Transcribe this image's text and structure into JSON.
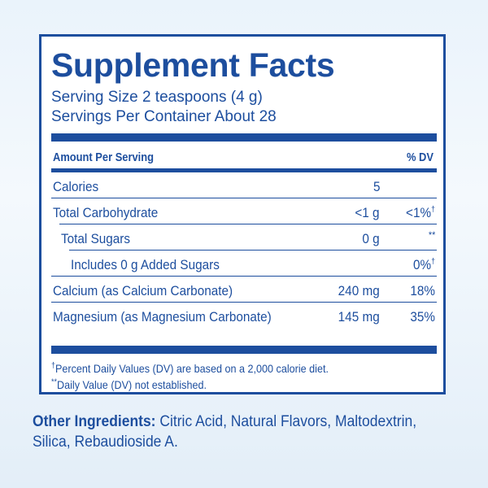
{
  "title": "Supplement Facts",
  "serving_size": "Serving Size 2 teaspoons (4 g)",
  "servings_per_container": "Servings Per Container About 28",
  "header": {
    "amount_label": "Amount Per Serving",
    "dv_label": "% DV"
  },
  "rows": [
    {
      "name": "Calories",
      "amount": "5",
      "dv": "",
      "dv_mark": ""
    },
    {
      "name": "Total Carbohydrate",
      "amount": "<1 g",
      "dv": "<1%",
      "dv_mark": "†"
    },
    {
      "name": "Total Sugars",
      "amount": "0 g",
      "dv": "**",
      "dv_mark": ""
    },
    {
      "name": "Includes 0 g Added Sugars",
      "amount": "",
      "dv": "0%",
      "dv_mark": "†"
    },
    {
      "name": "Calcium (as Calcium Carbonate)",
      "amount": "240 mg",
      "dv": "18%",
      "dv_mark": ""
    },
    {
      "name": "Magnesium (as Magnesium Carbonate)",
      "amount": "145 mg",
      "dv": "35%",
      "dv_mark": ""
    }
  ],
  "footnotes": {
    "dv_mark": "†",
    "dv_note": "Percent Daily Values (DV) are based on a 2,000 calorie diet.",
    "not_established_mark": "**",
    "not_established_note": "Daily Value (DV) not established."
  },
  "other_ingredients": {
    "label": "Other Ingredients:",
    "text": "Citric Acid, Natural Flavors, Maltodextrin, Silica, Rebaudioside A."
  },
  "colors": {
    "brand_blue": "#1d4e9e",
    "panel_bg": "#ffffff",
    "page_bg": "#eaf3fb"
  }
}
